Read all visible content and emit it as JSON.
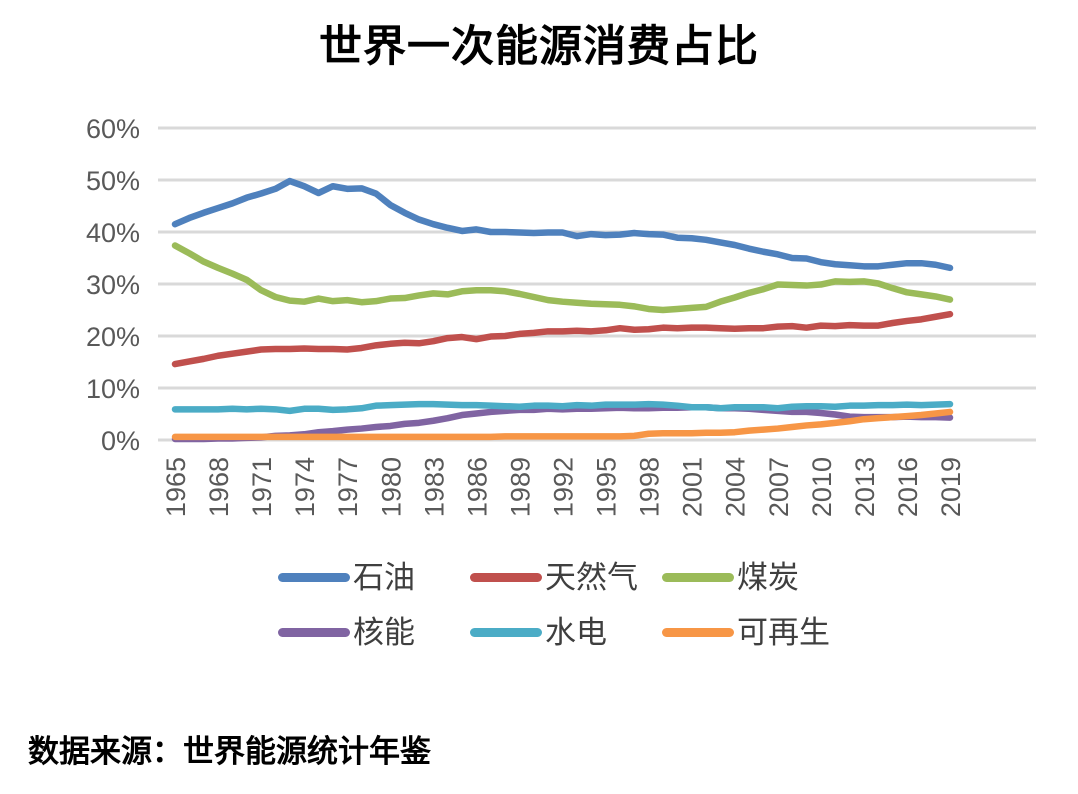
{
  "title": "世界一次能源消费占比",
  "source": "数据来源：世界能源统计年鉴",
  "chart_data": {
    "type": "line",
    "title": "世界一次能源消费占比",
    "xlabel": "",
    "ylabel": "",
    "xlim": [
      1965,
      2019
    ],
    "ylim": [
      0,
      60
    ],
    "grid": "horizontal",
    "grid_color": "#d9d9d9",
    "tick_color": "#595959",
    "legend_position": "bottom",
    "y_ticks": [
      "0%",
      "10%",
      "20%",
      "30%",
      "40%",
      "50%",
      "60%"
    ],
    "x_tick_labels": [
      "1965",
      "1968",
      "1971",
      "1974",
      "1977",
      "1980",
      "1983",
      "1986",
      "1989",
      "1992",
      "1995",
      "1998",
      "2001",
      "2004",
      "2007",
      "2010",
      "2013",
      "2016",
      "2019"
    ],
    "x_step_years": 1,
    "series": [
      {
        "id": "oil",
        "name": "石油",
        "color": "#4F81BD",
        "values": [
          41.5,
          42.7,
          43.7,
          44.6,
          45.5,
          46.6,
          47.4,
          48.3,
          49.8,
          48.8,
          47.5,
          48.8,
          48.3,
          48.4,
          47.4,
          45.2,
          43.7,
          42.4,
          41.5,
          40.8,
          40.2,
          40.5,
          40.0,
          40.0,
          39.9,
          39.8,
          39.9,
          39.9,
          39.2,
          39.6,
          39.4,
          39.5,
          39.8,
          39.6,
          39.5,
          38.9,
          38.8,
          38.5,
          38.0,
          37.5,
          36.8,
          36.2,
          35.7,
          35.0,
          34.9,
          34.2,
          33.8,
          33.6,
          33.4,
          33.4,
          33.7,
          34.0,
          34.0,
          33.7,
          33.1
        ]
      },
      {
        "id": "natural-gas",
        "name": "天然气",
        "color": "#C0504D",
        "values": [
          14.6,
          15.1,
          15.6,
          16.2,
          16.6,
          17.0,
          17.4,
          17.5,
          17.5,
          17.6,
          17.5,
          17.5,
          17.4,
          17.7,
          18.2,
          18.5,
          18.7,
          18.6,
          19.0,
          19.6,
          19.8,
          19.4,
          19.9,
          20.0,
          20.4,
          20.6,
          20.9,
          20.9,
          21.0,
          20.9,
          21.1,
          21.5,
          21.2,
          21.3,
          21.6,
          21.5,
          21.6,
          21.6,
          21.5,
          21.4,
          21.5,
          21.5,
          21.8,
          21.9,
          21.6,
          22.0,
          21.9,
          22.1,
          22.0,
          22.0,
          22.5,
          22.9,
          23.2,
          23.7,
          24.2
        ]
      },
      {
        "id": "coal",
        "name": "煤炭",
        "color": "#9BBB59",
        "values": [
          37.4,
          35.9,
          34.3,
          33.1,
          32.0,
          30.8,
          28.8,
          27.5,
          26.8,
          26.6,
          27.2,
          26.7,
          26.9,
          26.5,
          26.7,
          27.2,
          27.3,
          27.8,
          28.2,
          28.0,
          28.6,
          28.8,
          28.8,
          28.6,
          28.1,
          27.5,
          26.9,
          26.6,
          26.4,
          26.2,
          26.1,
          26.0,
          25.7,
          25.2,
          25.0,
          25.2,
          25.4,
          25.6,
          26.6,
          27.4,
          28.3,
          29.0,
          29.9,
          29.8,
          29.7,
          29.9,
          30.5,
          30.4,
          30.5,
          30.1,
          29.2,
          28.4,
          28.0,
          27.6,
          27.0
        ]
      },
      {
        "id": "nuclear",
        "name": "核能",
        "color": "#8064A2",
        "values": [
          0.2,
          0.2,
          0.2,
          0.3,
          0.3,
          0.4,
          0.5,
          0.8,
          0.9,
          1.1,
          1.5,
          1.7,
          2.0,
          2.2,
          2.5,
          2.7,
          3.1,
          3.3,
          3.7,
          4.2,
          4.8,
          5.1,
          5.4,
          5.6,
          5.8,
          5.8,
          6.0,
          5.9,
          6.0,
          6.0,
          6.1,
          6.2,
          6.1,
          6.1,
          6.2,
          6.2,
          6.3,
          6.3,
          6.1,
          6.1,
          6.0,
          5.8,
          5.6,
          5.4,
          5.4,
          5.2,
          4.9,
          4.5,
          4.4,
          4.4,
          4.4,
          4.5,
          4.4,
          4.4,
          4.3
        ]
      },
      {
        "id": "hydro",
        "name": "水电",
        "color": "#4BACC6",
        "values": [
          5.9,
          5.9,
          5.9,
          5.9,
          6.0,
          5.9,
          6.0,
          5.9,
          5.6,
          6.0,
          6.0,
          5.8,
          5.9,
          6.1,
          6.6,
          6.7,
          6.8,
          6.9,
          6.9,
          6.8,
          6.7,
          6.7,
          6.6,
          6.5,
          6.4,
          6.6,
          6.6,
          6.5,
          6.7,
          6.6,
          6.8,
          6.8,
          6.8,
          6.9,
          6.8,
          6.6,
          6.3,
          6.3,
          6.1,
          6.3,
          6.3,
          6.3,
          6.1,
          6.4,
          6.5,
          6.5,
          6.4,
          6.6,
          6.6,
          6.7,
          6.7,
          6.8,
          6.7,
          6.8,
          6.9
        ]
      },
      {
        "id": "renewable",
        "name": "可再生",
        "color": "#F79646",
        "values": [
          0.6,
          0.6,
          0.6,
          0.6,
          0.6,
          0.6,
          0.6,
          0.6,
          0.6,
          0.6,
          0.6,
          0.6,
          0.6,
          0.6,
          0.6,
          0.6,
          0.6,
          0.6,
          0.6,
          0.6,
          0.6,
          0.6,
          0.6,
          0.7,
          0.7,
          0.7,
          0.7,
          0.7,
          0.7,
          0.7,
          0.7,
          0.7,
          0.8,
          1.2,
          1.3,
          1.3,
          1.3,
          1.4,
          1.4,
          1.5,
          1.8,
          2.0,
          2.2,
          2.5,
          2.8,
          3.0,
          3.3,
          3.6,
          4.0,
          4.2,
          4.4,
          4.6,
          4.8,
          5.1,
          5.4
        ]
      }
    ]
  }
}
